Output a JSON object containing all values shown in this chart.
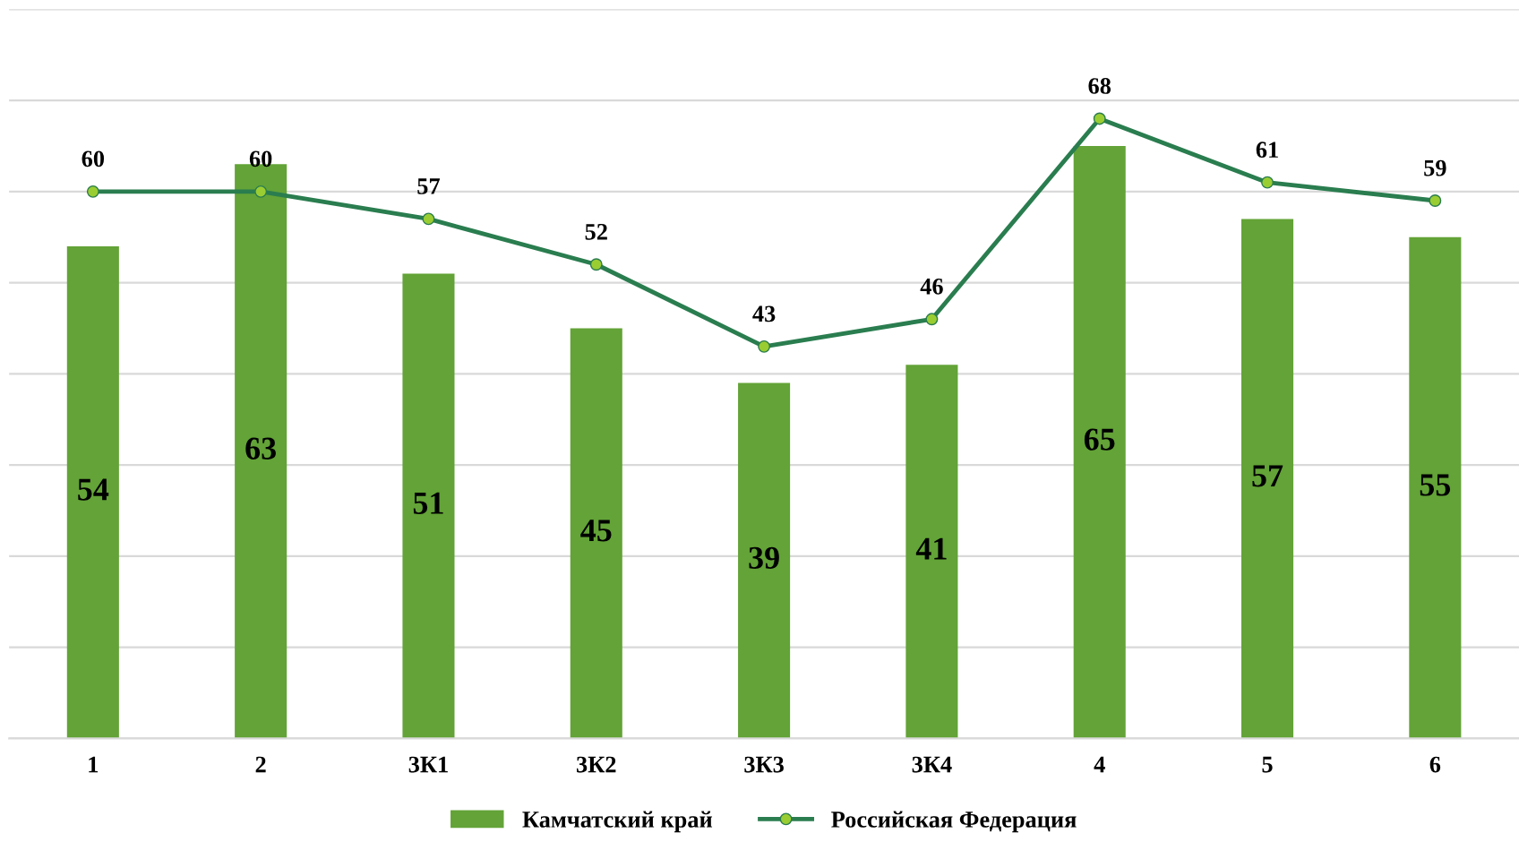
{
  "chart_data": {
    "type": "bar",
    "categories": [
      "1",
      "2",
      "3К1",
      "3К2",
      "3К3",
      "3К4",
      "4",
      "5",
      "6"
    ],
    "series": [
      {
        "name": "Камчатский край",
        "color": "#63a337",
        "values": [
          54,
          63,
          51,
          45,
          39,
          41,
          65,
          57,
          55
        ]
      },
      {
        "name": "Российская Федерация",
        "type": "line",
        "color": "#2a7d4f",
        "marker": "circle",
        "values": [
          60,
          60,
          57,
          52,
          43,
          46,
          68,
          61,
          59
        ]
      }
    ],
    "ylim": [
      0,
      80
    ],
    "yticks": [
      {
        "value": 0,
        "label": null
      },
      {
        "value": 10,
        "label": null
      },
      {
        "value": 20,
        "label": null
      },
      {
        "value": 30,
        "label": null
      },
      {
        "value": 40,
        "label": null
      },
      {
        "value": 50,
        "label": null
      },
      {
        "value": 60,
        "label": null
      },
      {
        "value": 70,
        "label": null
      },
      {
        "value": 80,
        "label": null
      }
    ],
    "tick_labels": "x",
    "grid": "y",
    "legend": "bottom",
    "data_labels": true
  }
}
